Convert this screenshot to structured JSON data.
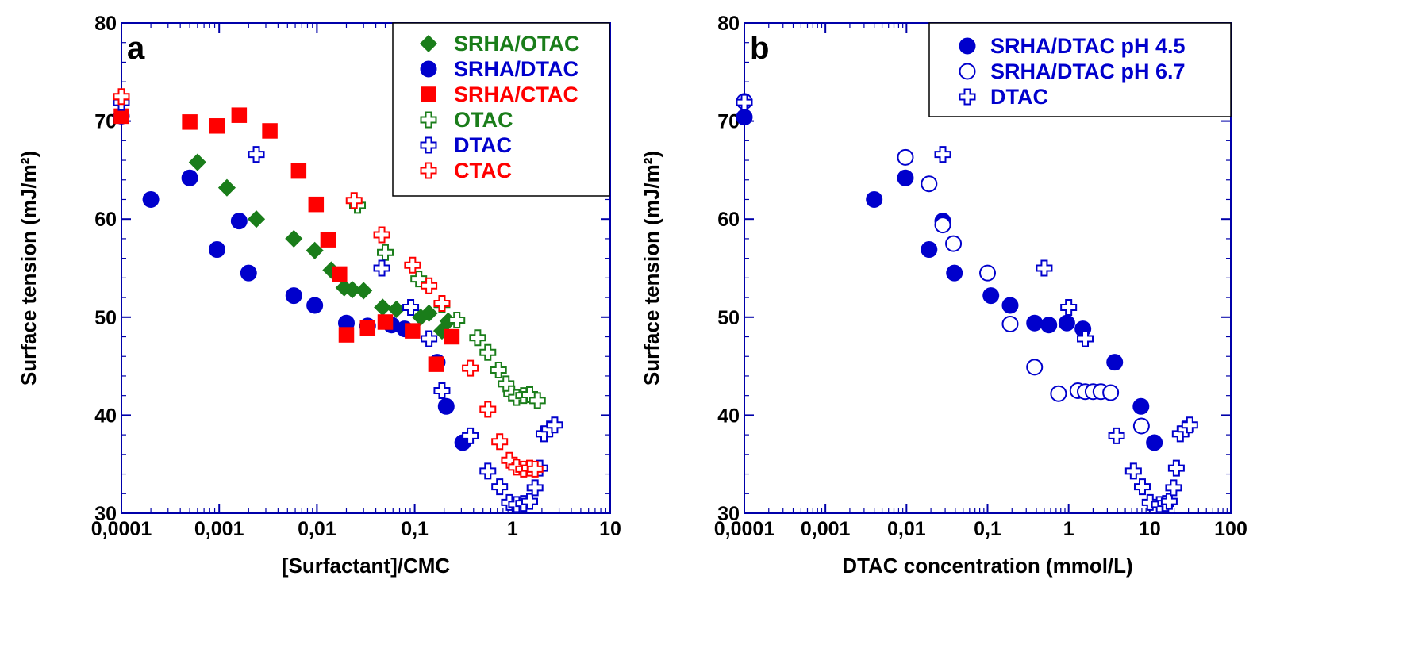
{
  "colors": {
    "green": "#1a7d1a",
    "blue": "#0000cc",
    "red": "#ff0000",
    "axis": "#0000aa",
    "text": "#000000"
  },
  "chart_data": [
    {
      "panel_label": "a",
      "type": "scatter",
      "xscale": "log",
      "xlim": [
        0.0001,
        10
      ],
      "ylim": [
        30,
        80
      ],
      "xticks": [
        "0,0001",
        "0,001",
        "0,01",
        "0,1",
        "1",
        "10"
      ],
      "yticks": [
        "30",
        "40",
        "50",
        "60",
        "70",
        "80"
      ],
      "xlabel": "[Surfactant]/CMC",
      "ylabel": "Surface tension (mJ/m²)",
      "legend_position": "top-right",
      "series": [
        {
          "name": "SRHA/OTAC",
          "marker": "diamond",
          "filled": true,
          "color": "#1a7d1a",
          "points": [
            [
              0.0006,
              65.8
            ],
            [
              0.0012,
              63.2
            ],
            [
              0.0024,
              60.0
            ],
            [
              0.0058,
              58.0
            ],
            [
              0.0095,
              56.8
            ],
            [
              0.014,
              54.8
            ],
            [
              0.019,
              53.0
            ],
            [
              0.023,
              52.8
            ],
            [
              0.03,
              52.7
            ],
            [
              0.047,
              51.0
            ],
            [
              0.065,
              50.8
            ],
            [
              0.115,
              50.0
            ],
            [
              0.14,
              50.4
            ],
            [
              0.19,
              48.6
            ],
            [
              0.22,
              49.6
            ]
          ]
        },
        {
          "name": "SRHA/DTAC",
          "marker": "circle",
          "filled": true,
          "color": "#0000cc",
          "points": [
            [
              0.0001,
              70.5
            ],
            [
              0.0002,
              62.0
            ],
            [
              0.0005,
              64.2
            ],
            [
              0.00095,
              56.9
            ],
            [
              0.0016,
              59.8
            ],
            [
              0.002,
              54.5
            ],
            [
              0.0058,
              52.2
            ],
            [
              0.0095,
              51.2
            ],
            [
              0.02,
              49.4
            ],
            [
              0.033,
              49.1
            ],
            [
              0.058,
              49.2
            ],
            [
              0.079,
              48.8
            ],
            [
              0.17,
              45.4
            ],
            [
              0.21,
              40.9
            ],
            [
              0.31,
              37.2
            ]
          ]
        },
        {
          "name": "SRHA/CTAC",
          "marker": "square",
          "filled": true,
          "color": "#ff0000",
          "points": [
            [
              0.0001,
              70.5
            ],
            [
              0.0005,
              69.9
            ],
            [
              0.00095,
              69.5
            ],
            [
              0.0016,
              70.6
            ],
            [
              0.0033,
              69.0
            ],
            [
              0.0065,
              64.9
            ],
            [
              0.0098,
              61.5
            ],
            [
              0.013,
              57.9
            ],
            [
              0.017,
              54.4
            ],
            [
              0.02,
              48.2
            ],
            [
              0.033,
              48.9
            ],
            [
              0.05,
              49.5
            ],
            [
              0.095,
              48.6
            ],
            [
              0.165,
              45.2
            ],
            [
              0.24,
              48.0
            ]
          ]
        },
        {
          "name": "OTAC",
          "marker": "cross",
          "filled": false,
          "color": "#1a7d1a",
          "points": [
            [
              0.026,
              61.4
            ],
            [
              0.05,
              56.6
            ],
            [
              0.11,
              53.9
            ],
            [
              0.19,
              51.3
            ],
            [
              0.27,
              49.7
            ],
            [
              0.44,
              47.9
            ],
            [
              0.56,
              46.4
            ],
            [
              0.72,
              44.6
            ],
            [
              0.86,
              43.2
            ],
            [
              0.98,
              42.2
            ],
            [
              1.1,
              41.8
            ],
            [
              1.3,
              42.0
            ],
            [
              1.5,
              42.1
            ],
            [
              1.8,
              41.5
            ]
          ]
        },
        {
          "name": "DTAC",
          "marker": "cross",
          "filled": false,
          "color": "#0000cc",
          "points": [
            [
              0.0001,
              71.9
            ],
            [
              0.0024,
              66.6
            ],
            [
              0.046,
              55.0
            ],
            [
              0.091,
              51.0
            ],
            [
              0.14,
              47.8
            ],
            [
              0.19,
              42.5
            ],
            [
              0.37,
              37.9
            ],
            [
              0.56,
              34.3
            ],
            [
              0.74,
              32.7
            ],
            [
              0.93,
              31.1
            ],
            [
              1.1,
              30.9
            ],
            [
              1.3,
              31.0
            ],
            [
              1.5,
              31.2
            ],
            [
              1.7,
              32.6
            ],
            [
              1.9,
              34.6
            ],
            [
              2.1,
              38.1
            ],
            [
              2.4,
              38.6
            ],
            [
              2.7,
              39.0
            ]
          ]
        },
        {
          "name": "CTAC",
          "marker": "cross",
          "filled": false,
          "color": "#ff0000",
          "points": [
            [
              0.0001,
              72.5
            ],
            [
              0.024,
              61.9
            ],
            [
              0.046,
              58.4
            ],
            [
              0.095,
              55.3
            ],
            [
              0.14,
              53.2
            ],
            [
              0.19,
              51.4
            ],
            [
              0.37,
              44.8
            ],
            [
              0.56,
              40.6
            ],
            [
              0.74,
              37.3
            ],
            [
              0.93,
              35.4
            ],
            [
              1.1,
              34.7
            ],
            [
              1.3,
              34.5
            ],
            [
              1.5,
              34.6
            ],
            [
              1.7,
              34.5
            ]
          ]
        }
      ]
    },
    {
      "panel_label": "b",
      "type": "scatter",
      "xscale": "log",
      "xlim": [
        0.0001,
        100
      ],
      "ylim": [
        30,
        80
      ],
      "xticks": [
        "0,0001",
        "0,001",
        "0,01",
        "0,1",
        "1",
        "10",
        "100"
      ],
      "yticks": [
        "30",
        "40",
        "50",
        "60",
        "70",
        "80"
      ],
      "xlabel": "DTAC concentration (mmol/L)",
      "ylabel": "Surface tension (mJ/m²)",
      "legend_position": "top-right",
      "series": [
        {
          "name": "SRHA/DTAC pH 4.5",
          "marker": "circle",
          "filled": true,
          "color": "#0000cc",
          "points": [
            [
              0.0001,
              70.4
            ],
            [
              0.004,
              62.0
            ],
            [
              0.0097,
              64.2
            ],
            [
              0.019,
              56.9
            ],
            [
              0.028,
              59.8
            ],
            [
              0.039,
              54.5
            ],
            [
              0.11,
              52.2
            ],
            [
              0.19,
              51.2
            ],
            [
              0.38,
              49.4
            ],
            [
              0.57,
              49.2
            ],
            [
              0.95,
              49.4
            ],
            [
              1.5,
              48.8
            ],
            [
              3.7,
              45.4
            ],
            [
              7.8,
              40.9
            ],
            [
              11.4,
              37.2
            ]
          ]
        },
        {
          "name": "SRHA/DTAC pH 6.7",
          "marker": "circle",
          "filled": false,
          "color": "#0000cc",
          "points": [
            [
              0.0001,
              72.0
            ],
            [
              0.0097,
              66.3
            ],
            [
              0.019,
              63.6
            ],
            [
              0.028,
              59.4
            ],
            [
              0.038,
              57.5
            ],
            [
              0.1,
              54.5
            ],
            [
              0.19,
              49.3
            ],
            [
              0.38,
              44.9
            ],
            [
              0.75,
              42.2
            ],
            [
              1.3,
              42.5
            ],
            [
              1.6,
              42.4
            ],
            [
              2.0,
              42.4
            ],
            [
              2.5,
              42.4
            ],
            [
              3.3,
              42.3
            ],
            [
              7.9,
              38.9
            ]
          ]
        },
        {
          "name": "DTAC",
          "marker": "cross",
          "filled": false,
          "color": "#0000cc",
          "points": [
            [
              0.0001,
              71.9
            ],
            [
              0.028,
              66.6
            ],
            [
              0.5,
              55.0
            ],
            [
              1.0,
              51.0
            ],
            [
              1.6,
              47.8
            ],
            [
              3.9,
              37.9
            ],
            [
              6.3,
              34.3
            ],
            [
              8.1,
              32.7
            ],
            [
              10.1,
              31.1
            ],
            [
              13.2,
              30.9
            ],
            [
              15.7,
              31.0
            ],
            [
              17.4,
              31.2
            ],
            [
              19.7,
              32.6
            ],
            [
              21.3,
              34.6
            ],
            [
              23.8,
              38.1
            ],
            [
              27.8,
              38.6
            ],
            [
              31.2,
              39.0
            ]
          ]
        }
      ]
    }
  ]
}
